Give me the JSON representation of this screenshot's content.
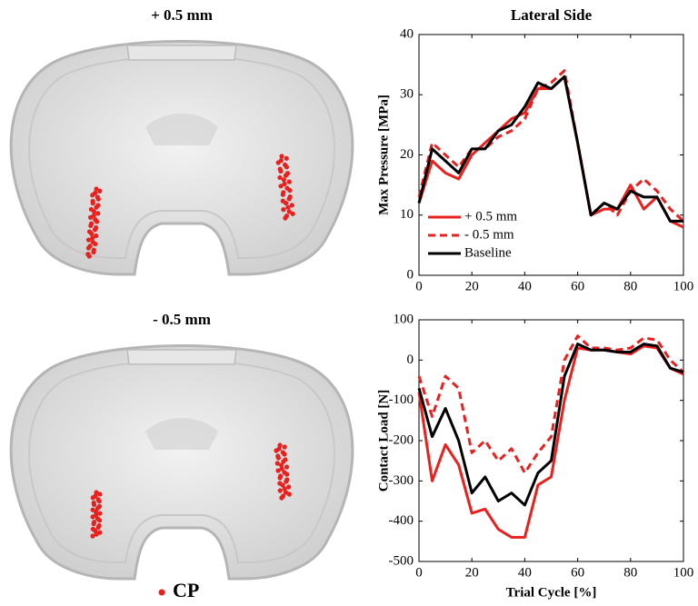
{
  "figure": {
    "panel_labels": [
      "+ 0.5 mm",
      "- 0.5 mm"
    ],
    "marker_legend": "CP"
  },
  "chart_data": [
    {
      "type": "line",
      "title": "Lateral Side",
      "y_label": "Max Pressure [MPa]",
      "x": [
        0,
        5,
        10,
        15,
        20,
        25,
        30,
        35,
        40,
        45,
        50,
        55,
        60,
        65,
        70,
        75,
        80,
        85,
        90,
        95,
        100
      ],
      "xlim": [
        0,
        100
      ],
      "xticks": [
        0,
        20,
        40,
        60,
        80,
        100
      ],
      "ylim": [
        0,
        40
      ],
      "yticks": [
        0,
        10,
        20,
        30,
        40
      ],
      "legend": "lower left",
      "series": [
        {
          "name": "+ 0.5 mm",
          "color": "#e8201e",
          "line_style": "solid",
          "values": [
            12,
            19,
            17,
            16,
            20,
            22,
            24,
            26,
            27,
            31,
            31,
            33,
            22,
            10,
            11,
            11,
            15,
            11,
            13,
            9,
            8
          ]
        },
        {
          "name": "- 0.5 mm",
          "color": "#e8201e",
          "line_style": "dashed",
          "values": [
            13,
            22,
            20,
            18,
            21,
            21,
            23,
            24,
            26,
            31,
            32,
            34,
            22,
            10,
            12,
            10,
            14,
            16,
            14,
            11,
            9
          ]
        },
        {
          "name": "Baseline",
          "color": "#000000",
          "line_style": "solid",
          "values": [
            12,
            21,
            19,
            17,
            21,
            21,
            24,
            25,
            28,
            32,
            31,
            33,
            22,
            10,
            12,
            11,
            14,
            13,
            13,
            9,
            9
          ]
        }
      ]
    },
    {
      "type": "line",
      "x_label": "Trial Cycle [%]",
      "y_label": "Contact Load [N]",
      "x": [
        0,
        5,
        10,
        15,
        20,
        25,
        30,
        35,
        40,
        45,
        50,
        55,
        60,
        65,
        70,
        75,
        80,
        85,
        90,
        95,
        100
      ],
      "xlim": [
        0,
        100
      ],
      "xticks": [
        0,
        20,
        40,
        60,
        80,
        100
      ],
      "ylim": [
        -500,
        100
      ],
      "yticks": [
        -500,
        -400,
        -300,
        -200,
        -100,
        0,
        100
      ],
      "series": [
        {
          "color": "#e8201e",
          "line_style": "solid",
          "values": [
            -80,
            -300,
            -210,
            -260,
            -380,
            -370,
            -420,
            -440,
            -440,
            -310,
            -290,
            -100,
            30,
            25,
            25,
            20,
            15,
            35,
            30,
            -20,
            -35
          ]
        },
        {
          "color": "#e8201e",
          "line_style": "dashed",
          "values": [
            -40,
            -140,
            -40,
            -70,
            -230,
            -200,
            -250,
            -220,
            -280,
            -230,
            -190,
            0,
            60,
            30,
            30,
            25,
            30,
            55,
            50,
            0,
            -30
          ]
        },
        {
          "color": "#000000",
          "line_style": "solid",
          "values": [
            -70,
            -190,
            -120,
            -200,
            -330,
            -290,
            -350,
            -330,
            -360,
            -280,
            -250,
            -40,
            40,
            25,
            25,
            20,
            20,
            40,
            35,
            -20,
            -30
          ]
        }
      ]
    }
  ]
}
